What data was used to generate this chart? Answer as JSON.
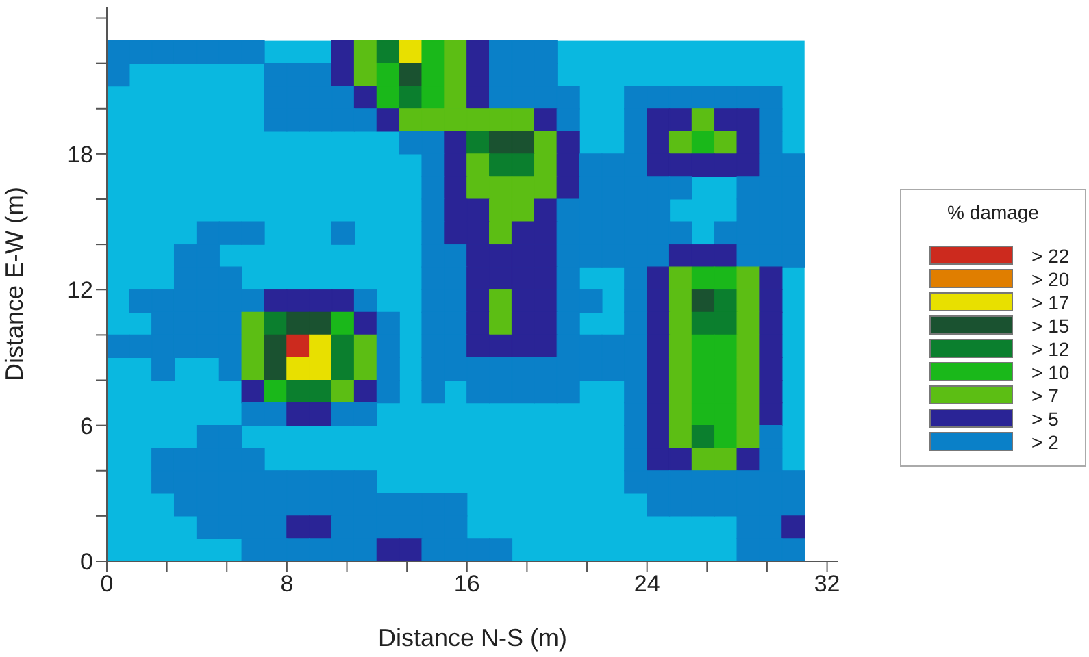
{
  "chart_data": {
    "type": "heatmap",
    "xlabel": "Distance N-S (m)",
    "ylabel": "Distance E-W (m)",
    "clabel": "% damage",
    "xlim": [
      0,
      32.5
    ],
    "ylim": [
      0,
      24.5
    ],
    "xticks": [
      0,
      {
        "value": 2.667,
        "label": null
      },
      {
        "value": 5.333,
        "label": null
      },
      8,
      {
        "value": 10.667,
        "label": null
      },
      {
        "value": 13.333,
        "label": null
      },
      16,
      {
        "value": 18.667,
        "label": null
      },
      {
        "value": 21.333,
        "label": null
      },
      24,
      {
        "value": 26.667,
        "label": null
      },
      {
        "value": 29.333,
        "label": null
      },
      32
    ],
    "yticks": [
      0,
      {
        "value": 2,
        "label": null
      },
      {
        "value": 4,
        "label": null
      },
      6,
      {
        "value": 8,
        "label": null
      },
      {
        "value": 10,
        "label": null
      },
      12,
      {
        "value": 14,
        "label": null
      },
      {
        "value": 16,
        "label": null
      },
      18,
      {
        "value": 20,
        "label": null
      },
      {
        "value": 22,
        "label": null
      },
      {
        "value": 24,
        "label": null
      }
    ],
    "cticks": [
      {
        "value": 2,
        "label": "> 2"
      },
      {
        "value": 5,
        "label": "> 5"
      },
      {
        "value": 7,
        "label": "> 7"
      },
      {
        "value": 10,
        "label": "> 10"
      },
      {
        "value": 12,
        "label": "> 12"
      },
      {
        "value": 15,
        "label": "> 15"
      },
      {
        "value": 17,
        "label": "> 17"
      },
      {
        "value": 20,
        "label": "> 20"
      },
      {
        "value": 22,
        "label": "> 22"
      }
    ],
    "colors": [
      "#0ab8e0",
      "#0a80c8",
      "#2a2496",
      "#5cbe14",
      "#1ab81a",
      "#0b7f2e",
      "#1a5230",
      "#e8e000",
      "#e07e00",
      "#cc2a1e"
    ],
    "x": [
      0.5,
      1.5,
      2.5,
      3.5,
      4.5,
      5.5,
      6.5,
      7.5,
      8.5,
      9.5,
      10.5,
      11.5,
      12.5,
      13.5,
      14.5,
      15.5,
      16.5,
      17.5,
      18.5,
      19.5,
      20.5,
      21.5,
      22.5,
      23.5,
      24.5,
      25.5,
      26.5,
      27.5,
      28.5,
      29.5,
      30.5
    ],
    "y": [
      22.5,
      21.5,
      20.5,
      19.5,
      18.5,
      17.5,
      16.5,
      15.5,
      14.5,
      13.5,
      12.5,
      11.5,
      10.5,
      9.5,
      8.5,
      7.5,
      6.5,
      5.5,
      4.5,
      3.5,
      2.5,
      1.5,
      0.5
    ],
    "cells": [
      [
        2,
        2,
        2,
        2,
        2,
        2,
        2,
        null,
        null,
        null,
        5,
        7,
        12,
        17,
        10,
        7,
        5,
        2,
        2,
        2,
        null,
        null,
        null,
        null,
        null,
        null,
        null,
        null,
        null,
        null,
        null
      ],
      [
        2,
        null,
        null,
        null,
        null,
        null,
        null,
        2,
        2,
        2,
        5,
        7,
        10,
        15,
        10,
        7,
        5,
        2,
        2,
        2,
        null,
        null,
        null,
        null,
        null,
        null,
        null,
        null,
        null,
        null,
        null
      ],
      [
        null,
        null,
        null,
        null,
        null,
        null,
        null,
        2,
        2,
        2,
        2,
        5,
        10,
        12,
        10,
        7,
        5,
        2,
        2,
        2,
        2,
        null,
        null,
        2,
        2,
        2,
        2,
        2,
        2,
        2,
        null
      ],
      [
        null,
        null,
        null,
        null,
        null,
        null,
        null,
        2,
        2,
        2,
        2,
        2,
        5,
        7,
        7,
        7,
        7,
        7,
        7,
        5,
        2,
        null,
        null,
        2,
        5,
        5,
        7,
        5,
        5,
        2,
        null
      ],
      [
        null,
        null,
        null,
        null,
        null,
        null,
        null,
        null,
        null,
        null,
        null,
        null,
        null,
        2,
        2,
        5,
        12,
        15,
        15,
        7,
        5,
        null,
        null,
        2,
        5,
        7,
        10,
        7,
        5,
        2,
        null
      ],
      [
        null,
        null,
        null,
        null,
        null,
        null,
        null,
        null,
        null,
        null,
        null,
        null,
        null,
        null,
        2,
        5,
        7,
        12,
        12,
        7,
        5,
        2,
        2,
        2,
        5,
        5,
        5,
        5,
        5,
        2,
        2
      ],
      [
        null,
        null,
        null,
        null,
        null,
        null,
        null,
        null,
        null,
        null,
        null,
        null,
        null,
        null,
        2,
        5,
        7,
        7,
        7,
        7,
        5,
        2,
        2,
        2,
        2,
        2,
        null,
        null,
        2,
        2,
        2
      ],
      [
        null,
        null,
        null,
        null,
        null,
        null,
        null,
        null,
        null,
        null,
        null,
        null,
        null,
        null,
        2,
        5,
        5,
        7,
        7,
        5,
        2,
        2,
        2,
        2,
        2,
        null,
        null,
        null,
        2,
        2,
        2
      ],
      [
        null,
        null,
        null,
        null,
        2,
        2,
        2,
        null,
        null,
        null,
        2,
        null,
        null,
        null,
        2,
        5,
        5,
        7,
        5,
        5,
        2,
        2,
        2,
        2,
        2,
        2,
        null,
        2,
        2,
        2,
        2
      ],
      [
        null,
        null,
        null,
        2,
        2,
        null,
        null,
        null,
        null,
        null,
        null,
        null,
        null,
        null,
        2,
        2,
        5,
        5,
        5,
        5,
        2,
        2,
        2,
        2,
        2,
        5,
        5,
        5,
        2,
        2,
        2
      ],
      [
        null,
        null,
        null,
        2,
        2,
        2,
        null,
        null,
        null,
        null,
        null,
        null,
        null,
        null,
        2,
        2,
        5,
        5,
        5,
        5,
        2,
        null,
        null,
        2,
        5,
        7,
        10,
        10,
        7,
        5,
        null
      ],
      [
        null,
        2,
        2,
        2,
        2,
        2,
        2,
        5,
        5,
        5,
        5,
        2,
        null,
        null,
        2,
        2,
        5,
        7,
        5,
        5,
        2,
        2,
        null,
        2,
        5,
        7,
        15,
        12,
        7,
        5,
        null
      ],
      [
        null,
        null,
        2,
        2,
        2,
        2,
        7,
        12,
        15,
        15,
        10,
        5,
        2,
        null,
        2,
        2,
        5,
        7,
        5,
        5,
        2,
        null,
        null,
        2,
        5,
        7,
        12,
        12,
        7,
        5,
        null
      ],
      [
        2,
        2,
        2,
        2,
        2,
        2,
        7,
        15,
        22,
        17,
        12,
        7,
        2,
        null,
        2,
        2,
        5,
        5,
        5,
        5,
        2,
        2,
        2,
        2,
        5,
        7,
        10,
        10,
        7,
        5,
        null
      ],
      [
        null,
        null,
        2,
        null,
        null,
        2,
        7,
        15,
        17,
        17,
        12,
        7,
        2,
        null,
        2,
        2,
        2,
        2,
        2,
        2,
        2,
        2,
        2,
        2,
        5,
        7,
        10,
        10,
        7,
        5,
        null
      ],
      [
        null,
        null,
        null,
        null,
        null,
        null,
        5,
        10,
        12,
        12,
        7,
        5,
        2,
        null,
        2,
        null,
        2,
        2,
        2,
        2,
        2,
        null,
        null,
        2,
        5,
        7,
        10,
        10,
        7,
        5,
        null
      ],
      [
        null,
        null,
        null,
        null,
        null,
        null,
        2,
        2,
        5,
        5,
        2,
        2,
        null,
        null,
        null,
        null,
        null,
        null,
        null,
        null,
        null,
        null,
        null,
        2,
        5,
        7,
        10,
        10,
        7,
        5,
        null
      ],
      [
        null,
        null,
        null,
        null,
        2,
        2,
        null,
        null,
        null,
        null,
        null,
        null,
        null,
        null,
        null,
        null,
        null,
        null,
        null,
        null,
        null,
        null,
        null,
        2,
        5,
        7,
        12,
        10,
        7,
        2,
        null
      ],
      [
        null,
        null,
        2,
        2,
        2,
        2,
        2,
        null,
        null,
        null,
        null,
        null,
        null,
        null,
        null,
        null,
        null,
        null,
        null,
        null,
        null,
        null,
        null,
        2,
        5,
        5,
        7,
        7,
        5,
        2,
        null
      ],
      [
        null,
        null,
        2,
        2,
        2,
        2,
        2,
        2,
        2,
        2,
        2,
        2,
        null,
        null,
        null,
        null,
        null,
        null,
        null,
        null,
        null,
        null,
        null,
        2,
        2,
        2,
        2,
        2,
        2,
        2,
        2
      ],
      [
        null,
        null,
        null,
        2,
        2,
        2,
        2,
        2,
        2,
        2,
        2,
        2,
        2,
        2,
        2,
        2,
        null,
        null,
        null,
        null,
        null,
        null,
        null,
        null,
        2,
        2,
        2,
        2,
        2,
        2,
        2
      ],
      [
        null,
        null,
        null,
        null,
        2,
        2,
        2,
        2,
        5,
        5,
        2,
        2,
        2,
        2,
        2,
        2,
        null,
        null,
        null,
        null,
        null,
        null,
        null,
        null,
        null,
        null,
        null,
        null,
        2,
        2,
        5
      ],
      [
        null,
        null,
        null,
        null,
        null,
        null,
        2,
        2,
        2,
        2,
        2,
        2,
        5,
        5,
        2,
        2,
        2,
        2,
        null,
        null,
        null,
        null,
        null,
        null,
        null,
        null,
        null,
        null,
        2,
        2,
        2
      ]
    ]
  }
}
